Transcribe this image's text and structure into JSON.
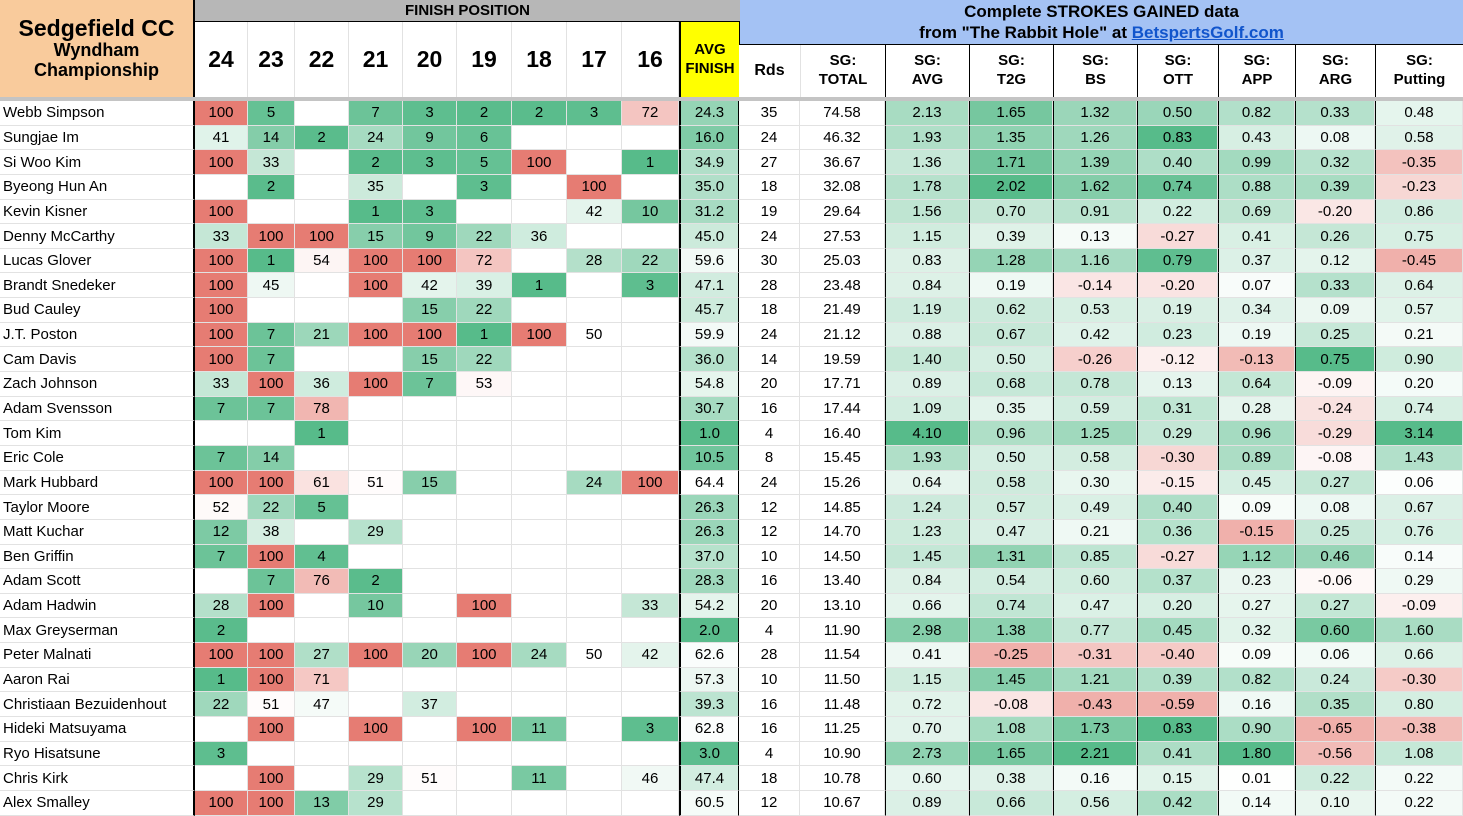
{
  "header": {
    "venue": "Sedgefield CC",
    "event_line1": "Wyndham",
    "event_line2": "Championship",
    "finish_band": "FINISH POSITION",
    "finish_years": [
      "24",
      "23",
      "22",
      "21",
      "20",
      "19",
      "18",
      "17",
      "16"
    ],
    "avg_finish_line1": "AVG",
    "avg_finish_line2": "FINISH",
    "sg_title": "Complete STROKES GAINED data",
    "sg_source_prefix": "from \"The Rabbit Hole\" at ",
    "sg_source_link": "BetspertsGolf.com",
    "stat_cols": [
      {
        "l1": "Rds",
        "l2": ""
      },
      {
        "l1": "SG:",
        "l2": "TOTAL"
      },
      {
        "l1": "SG:",
        "l2": "AVG"
      },
      {
        "l1": "SG:",
        "l2": "T2G"
      },
      {
        "l1": "SG:",
        "l2": "BS"
      },
      {
        "l1": "SG:",
        "l2": "OTT"
      },
      {
        "l1": "SG:",
        "l2": "APP"
      },
      {
        "l1": "SG:",
        "l2": "ARG"
      },
      {
        "l1": "SG:",
        "l2": "Putting"
      }
    ]
  },
  "colors": {
    "title_bg": "#f9cb9c",
    "finish_band_bg": "#b7b7b7",
    "avg_header_bg": "#ffff00",
    "sg_header_bg": "#a4c2f4",
    "link": "#1155cc",
    "good": "#57bb8a",
    "bad": "#e67c73"
  },
  "rows": [
    {
      "name": "Webb Simpson",
      "finish": [
        "100",
        "5",
        "",
        "7",
        "3",
        "2",
        "2",
        "3",
        "72"
      ],
      "avg": "24.3",
      "rds": "35",
      "sg": [
        "74.58",
        "2.13",
        "1.65",
        "1.32",
        "0.50",
        "0.82",
        "0.33",
        "0.48"
      ]
    },
    {
      "name": "Sungjae Im",
      "finish": [
        "41",
        "14",
        "2",
        "24",
        "9",
        "6",
        "",
        "",
        ""
      ],
      "avg": "16.0",
      "rds": "24",
      "sg": [
        "46.32",
        "1.93",
        "1.35",
        "1.26",
        "0.83",
        "0.43",
        "0.08",
        "0.58"
      ]
    },
    {
      "name": "Si Woo Kim",
      "finish": [
        "100",
        "33",
        "",
        "2",
        "3",
        "5",
        "100",
        "",
        "1"
      ],
      "avg": "34.9",
      "rds": "27",
      "sg": [
        "36.67",
        "1.36",
        "1.71",
        "1.39",
        "0.40",
        "0.99",
        "0.32",
        "-0.35"
      ]
    },
    {
      "name": "Byeong Hun An",
      "finish": [
        "",
        "2",
        "",
        "35",
        "",
        "3",
        "",
        "100",
        ""
      ],
      "avg": "35.0",
      "rds": "18",
      "sg": [
        "32.08",
        "1.78",
        "2.02",
        "1.62",
        "0.74",
        "0.88",
        "0.39",
        "-0.23"
      ]
    },
    {
      "name": "Kevin Kisner",
      "finish": [
        "100",
        "",
        "",
        "1",
        "3",
        "",
        "",
        "42",
        "10"
      ],
      "avg": "31.2",
      "rds": "19",
      "sg": [
        "29.64",
        "1.56",
        "0.70",
        "0.91",
        "0.22",
        "0.69",
        "-0.20",
        "0.86"
      ]
    },
    {
      "name": "Denny McCarthy",
      "finish": [
        "33",
        "100",
        "100",
        "15",
        "9",
        "22",
        "36",
        "",
        ""
      ],
      "avg": "45.0",
      "rds": "24",
      "sg": [
        "27.53",
        "1.15",
        "0.39",
        "0.13",
        "-0.27",
        "0.41",
        "0.26",
        "0.75"
      ]
    },
    {
      "name": "Lucas Glover",
      "finish": [
        "100",
        "1",
        "54",
        "100",
        "100",
        "72",
        "",
        "28",
        "22"
      ],
      "avg": "59.6",
      "rds": "30",
      "sg": [
        "25.03",
        "0.83",
        "1.28",
        "1.16",
        "0.79",
        "0.37",
        "0.12",
        "-0.45"
      ]
    },
    {
      "name": "Brandt Snedeker",
      "finish": [
        "100",
        "45",
        "",
        "100",
        "42",
        "39",
        "1",
        "",
        "3"
      ],
      "avg": "47.1",
      "rds": "28",
      "sg": [
        "23.48",
        "0.84",
        "0.19",
        "-0.14",
        "-0.20",
        "0.07",
        "0.33",
        "0.64"
      ]
    },
    {
      "name": "Bud Cauley",
      "finish": [
        "100",
        "",
        "",
        "",
        "15",
        "22",
        "",
        "",
        ""
      ],
      "avg": "45.7",
      "rds": "18",
      "sg": [
        "21.49",
        "1.19",
        "0.62",
        "0.53",
        "0.19",
        "0.34",
        "0.09",
        "0.57"
      ]
    },
    {
      "name": "J.T. Poston",
      "finish": [
        "100",
        "7",
        "21",
        "100",
        "100",
        "1",
        "100",
        "50",
        ""
      ],
      "avg": "59.9",
      "rds": "24",
      "sg": [
        "21.12",
        "0.88",
        "0.67",
        "0.42",
        "0.23",
        "0.19",
        "0.25",
        "0.21"
      ]
    },
    {
      "name": "Cam Davis",
      "finish": [
        "100",
        "7",
        "",
        "",
        "15",
        "22",
        "",
        "",
        ""
      ],
      "avg": "36.0",
      "rds": "14",
      "sg": [
        "19.59",
        "1.40",
        "0.50",
        "-0.26",
        "-0.12",
        "-0.13",
        "0.75",
        "0.90"
      ]
    },
    {
      "name": "Zach Johnson",
      "finish": [
        "33",
        "100",
        "36",
        "100",
        "7",
        "53",
        "",
        "",
        ""
      ],
      "avg": "54.8",
      "rds": "20",
      "sg": [
        "17.71",
        "0.89",
        "0.68",
        "0.78",
        "0.13",
        "0.64",
        "-0.09",
        "0.20"
      ]
    },
    {
      "name": "Adam Svensson",
      "finish": [
        "7",
        "7",
        "78",
        "",
        "",
        "",
        "",
        "",
        ""
      ],
      "avg": "30.7",
      "rds": "16",
      "sg": [
        "17.44",
        "1.09",
        "0.35",
        "0.59",
        "0.31",
        "0.28",
        "-0.24",
        "0.74"
      ]
    },
    {
      "name": "Tom Kim",
      "finish": [
        "",
        "",
        "1",
        "",
        "",
        "",
        "",
        "",
        ""
      ],
      "avg": "1.0",
      "rds": "4",
      "sg": [
        "16.40",
        "4.10",
        "0.96",
        "1.25",
        "0.29",
        "0.96",
        "-0.29",
        "3.14"
      ]
    },
    {
      "name": "Eric Cole",
      "finish": [
        "7",
        "14",
        "",
        "",
        "",
        "",
        "",
        "",
        ""
      ],
      "avg": "10.5",
      "rds": "8",
      "sg": [
        "15.45",
        "1.93",
        "0.50",
        "0.58",
        "-0.30",
        "0.89",
        "-0.08",
        "1.43"
      ]
    },
    {
      "name": "Mark Hubbard",
      "finish": [
        "100",
        "100",
        "61",
        "51",
        "15",
        "",
        "",
        "24",
        "100"
      ],
      "avg": "64.4",
      "rds": "24",
      "sg": [
        "15.26",
        "0.64",
        "0.58",
        "0.30",
        "-0.15",
        "0.45",
        "0.27",
        "0.06"
      ]
    },
    {
      "name": "Taylor Moore",
      "finish": [
        "52",
        "22",
        "5",
        "",
        "",
        "",
        "",
        "",
        ""
      ],
      "avg": "26.3",
      "rds": "12",
      "sg": [
        "14.85",
        "1.24",
        "0.57",
        "0.49",
        "0.40",
        "0.09",
        "0.08",
        "0.67"
      ]
    },
    {
      "name": "Matt Kuchar",
      "finish": [
        "12",
        "38",
        "",
        "29",
        "",
        "",
        "",
        "",
        ""
      ],
      "avg": "26.3",
      "rds": "12",
      "sg": [
        "14.70",
        "1.23",
        "0.47",
        "0.21",
        "0.36",
        "-0.15",
        "0.25",
        "0.76"
      ]
    },
    {
      "name": "Ben Griffin",
      "finish": [
        "7",
        "100",
        "4",
        "",
        "",
        "",
        "",
        "",
        ""
      ],
      "avg": "37.0",
      "rds": "10",
      "sg": [
        "14.50",
        "1.45",
        "1.31",
        "0.85",
        "-0.27",
        "1.12",
        "0.46",
        "0.14"
      ]
    },
    {
      "name": "Adam Scott",
      "finish": [
        "",
        "7",
        "76",
        "2",
        "",
        "",
        "",
        "",
        ""
      ],
      "avg": "28.3",
      "rds": "16",
      "sg": [
        "13.40",
        "0.84",
        "0.54",
        "0.60",
        "0.37",
        "0.23",
        "-0.06",
        "0.29"
      ]
    },
    {
      "name": "Adam Hadwin",
      "finish": [
        "28",
        "100",
        "",
        "10",
        "",
        "100",
        "",
        "",
        "33"
      ],
      "avg": "54.2",
      "rds": "20",
      "sg": [
        "13.10",
        "0.66",
        "0.74",
        "0.47",
        "0.20",
        "0.27",
        "0.27",
        "-0.09"
      ]
    },
    {
      "name": "Max Greyserman",
      "finish": [
        "2",
        "",
        "",
        "",
        "",
        "",
        "",
        "",
        ""
      ],
      "avg": "2.0",
      "rds": "4",
      "sg": [
        "11.90",
        "2.98",
        "1.38",
        "0.77",
        "0.45",
        "0.32",
        "0.60",
        "1.60"
      ]
    },
    {
      "name": "Peter Malnati",
      "finish": [
        "100",
        "100",
        "27",
        "100",
        "20",
        "100",
        "24",
        "50",
        "42"
      ],
      "avg": "62.6",
      "rds": "28",
      "sg": [
        "11.54",
        "0.41",
        "-0.25",
        "-0.31",
        "-0.40",
        "0.09",
        "0.06",
        "0.66"
      ]
    },
    {
      "name": "Aaron Rai",
      "finish": [
        "1",
        "100",
        "71",
        "",
        "",
        "",
        "",
        "",
        ""
      ],
      "avg": "57.3",
      "rds": "10",
      "sg": [
        "11.50",
        "1.15",
        "1.45",
        "1.21",
        "0.39",
        "0.82",
        "0.24",
        "-0.30"
      ]
    },
    {
      "name": "Christiaan Bezuidenhout",
      "finish": [
        "22",
        "51",
        "47",
        "",
        "37",
        "",
        "",
        "",
        ""
      ],
      "avg": "39.3",
      "rds": "16",
      "sg": [
        "11.48",
        "0.72",
        "-0.08",
        "-0.43",
        "-0.59",
        "0.16",
        "0.35",
        "0.80"
      ]
    },
    {
      "name": "Hideki Matsuyama",
      "finish": [
        "",
        "100",
        "",
        "100",
        "",
        "100",
        "11",
        "",
        "3"
      ],
      "avg": "62.8",
      "rds": "16",
      "sg": [
        "11.25",
        "0.70",
        "1.08",
        "1.73",
        "0.83",
        "0.90",
        "-0.65",
        "-0.38"
      ]
    },
    {
      "name": "Ryo Hisatsune",
      "finish": [
        "3",
        "",
        "",
        "",
        "",
        "",
        "",
        "",
        ""
      ],
      "avg": "3.0",
      "rds": "4",
      "sg": [
        "10.90",
        "2.73",
        "1.65",
        "2.21",
        "0.41",
        "1.80",
        "-0.56",
        "1.08"
      ]
    },
    {
      "name": "Chris Kirk",
      "finish": [
        "",
        "100",
        "",
        "29",
        "51",
        "",
        "11",
        "",
        "46"
      ],
      "avg": "47.4",
      "rds": "18",
      "sg": [
        "10.78",
        "0.60",
        "0.38",
        "0.16",
        "0.15",
        "0.01",
        "0.22",
        "0.22"
      ]
    },
    {
      "name": "Alex Smalley",
      "finish": [
        "100",
        "100",
        "13",
        "29",
        "",
        "",
        "",
        "",
        ""
      ],
      "avg": "60.5",
      "rds": "12",
      "sg": [
        "10.67",
        "0.89",
        "0.66",
        "0.56",
        "0.42",
        "0.14",
        "0.10",
        "0.22"
      ]
    }
  ]
}
